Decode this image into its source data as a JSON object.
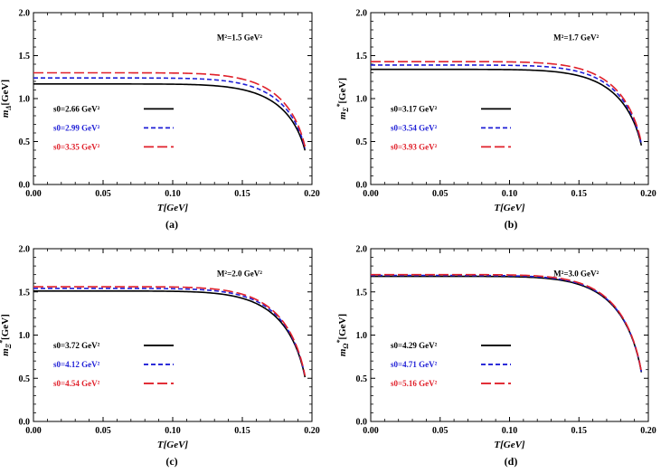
{
  "colors": {
    "black": "#000000",
    "blue": "#1f1fd6",
    "red": "#e0202a"
  },
  "chart_data": [
    {
      "type": "line",
      "panel": "(a)",
      "xlabel": "T[GeV]",
      "ylabel": "m_Δ[GeV]",
      "ylabel_main": "m",
      "ylabel_sub": "Δ",
      "ylabel_sup": "",
      "ylabel_rest": "[GeV]",
      "annotation": "M²=1.5 GeV²",
      "xlim": [
        0,
        0.2
      ],
      "ylim": [
        0,
        2.0
      ],
      "xticks": [
        "0.00",
        "0.05",
        "0.10",
        "0.15",
        "0.20"
      ],
      "yticks": [
        "0.0",
        "0.5",
        "1.0",
        "1.5",
        "2.0"
      ],
      "Tc": 0.198,
      "series": [
        {
          "name": "s0=2.66 GeV²",
          "m0": 1.17,
          "color": "black",
          "dash": "solid"
        },
        {
          "name": "s0=2.99 GeV²",
          "m0": 1.24,
          "color": "blue",
          "dash": "short"
        },
        {
          "name": "s0=3.35 GeV²",
          "m0": 1.3,
          "color": "red",
          "dash": "long"
        }
      ]
    },
    {
      "type": "line",
      "panel": "(b)",
      "xlabel": "T[GeV]",
      "ylabel": "m_Σ*[GeV]",
      "ylabel_main": "m",
      "ylabel_sub": "Σ",
      "ylabel_sup": "*",
      "ylabel_rest": "[GeV]",
      "annotation": "M²=1.7 GeV²",
      "xlim": [
        0,
        0.2
      ],
      "ylim": [
        0,
        2.0
      ],
      "xticks": [
        "0.00",
        "0.05",
        "0.10",
        "0.15",
        "0.20"
      ],
      "yticks": [
        "0.0",
        "0.5",
        "1.0",
        "1.5",
        "2.0"
      ],
      "Tc": 0.198,
      "series": [
        {
          "name": "s0=3.17 GeV²",
          "m0": 1.34,
          "color": "black",
          "dash": "solid"
        },
        {
          "name": "s0=3.54 GeV²",
          "m0": 1.39,
          "color": "blue",
          "dash": "short"
        },
        {
          "name": "s0=3.93 GeV²",
          "m0": 1.43,
          "color": "red",
          "dash": "long"
        }
      ]
    },
    {
      "type": "line",
      "panel": "(c)",
      "xlabel": "T[GeV]",
      "ylabel": "m_Ξ*[GeV]",
      "ylabel_main": "m",
      "ylabel_sub": "Ξ",
      "ylabel_sup": "*",
      "ylabel_rest": "[GeV]",
      "annotation": "M²=2.0 GeV²",
      "xlim": [
        0,
        0.2
      ],
      "ylim": [
        0,
        2.0
      ],
      "xticks": [
        "0.00",
        "0.05",
        "0.10",
        "0.15",
        "0.20"
      ],
      "yticks": [
        "0.0",
        "0.5",
        "1.0",
        "1.5",
        "2.0"
      ],
      "Tc": 0.198,
      "series": [
        {
          "name": "s0=3.72 GeV²",
          "m0": 1.51,
          "color": "black",
          "dash": "solid"
        },
        {
          "name": "s0=4.12 GeV²",
          "m0": 1.54,
          "color": "blue",
          "dash": "short"
        },
        {
          "name": "s0=4.54 GeV²",
          "m0": 1.56,
          "color": "red",
          "dash": "long"
        }
      ]
    },
    {
      "type": "line",
      "panel": "(d)",
      "xlabel": "T[GeV]",
      "ylabel": "m_Ω*[GeV]",
      "ylabel_main": "m",
      "ylabel_sub": "Ω",
      "ylabel_sup": "*",
      "ylabel_rest": "[GeV]",
      "annotation": "M²=3.0 GeV²",
      "xlim": [
        0,
        0.2
      ],
      "ylim": [
        0,
        2.0
      ],
      "xticks": [
        "0.00",
        "0.05",
        "0.10",
        "0.15",
        "0.20"
      ],
      "yticks": [
        "0.0",
        "0.5",
        "1.0",
        "1.5",
        "2.0"
      ],
      "Tc": 0.198,
      "series": [
        {
          "name": "s0=4.29 GeV²",
          "m0": 1.68,
          "color": "black",
          "dash": "solid"
        },
        {
          "name": "s0=4.71 GeV²",
          "m0": 1.69,
          "color": "blue",
          "dash": "short"
        },
        {
          "name": "s0=5.16 GeV²",
          "m0": 1.7,
          "color": "red",
          "dash": "long"
        }
      ]
    }
  ]
}
